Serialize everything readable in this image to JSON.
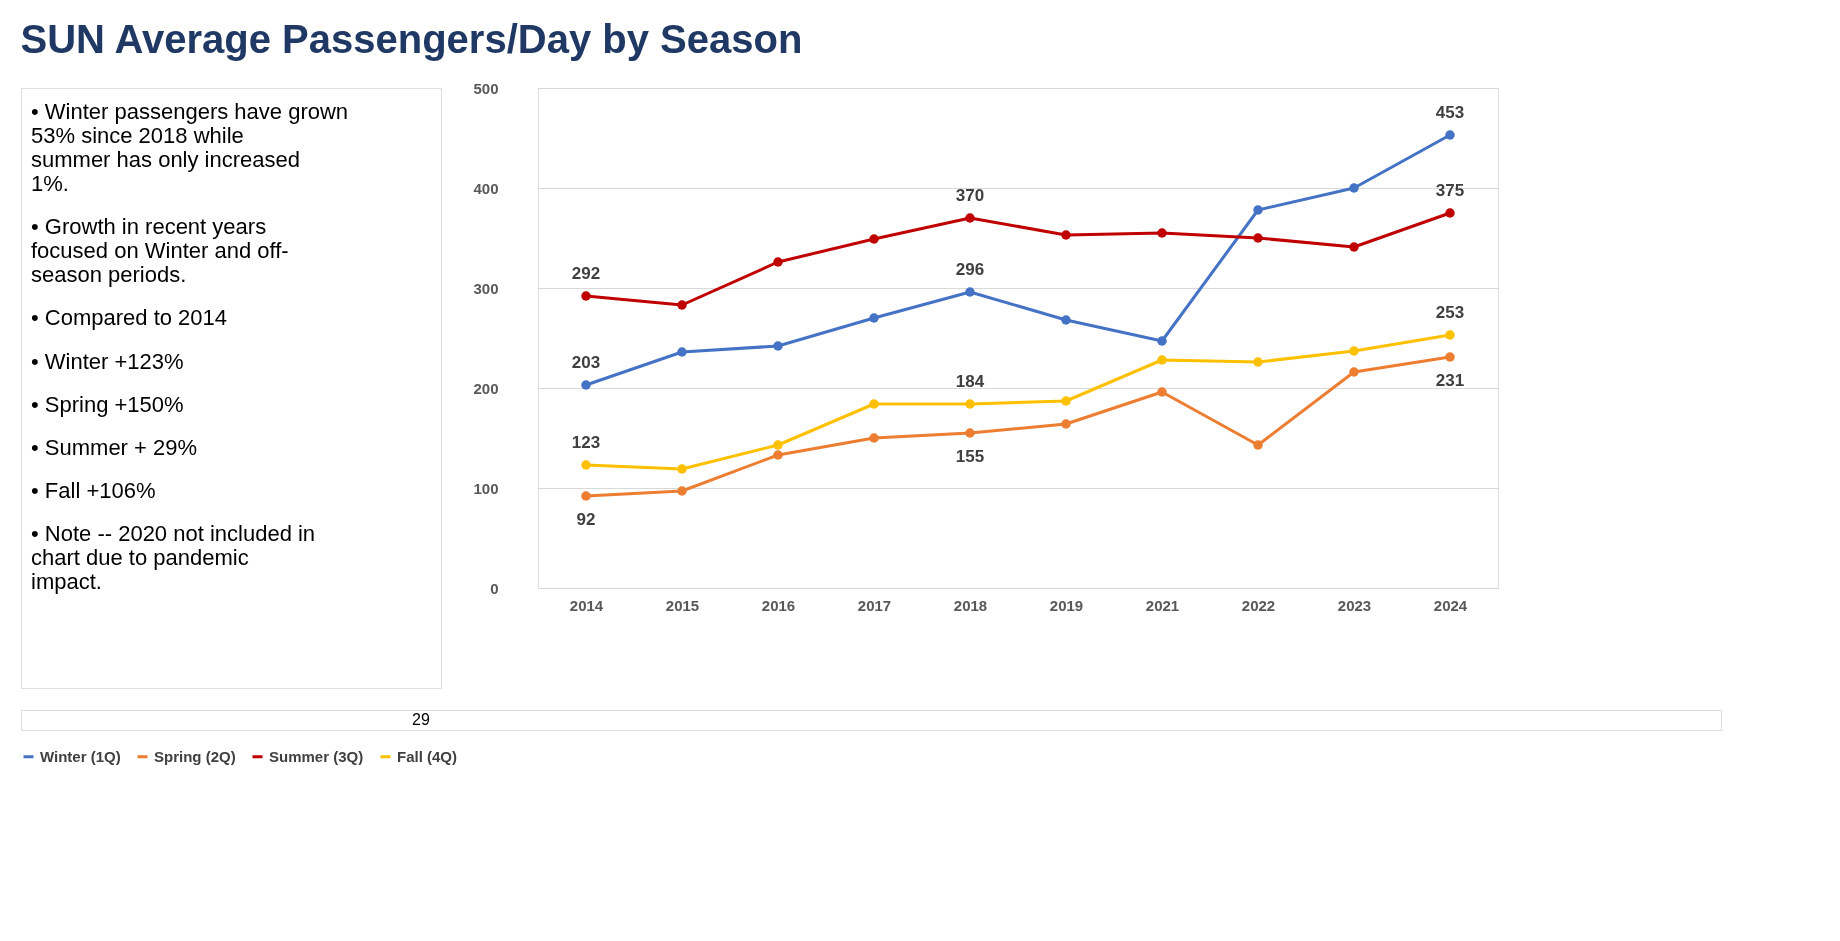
{
  "chart_data": {
    "type": "line",
    "title": "SUN Average Passengers/Day by Season",
    "categories": [
      "2014",
      "2015",
      "2016",
      "2017",
      "2018",
      "2019",
      "2021",
      "2022",
      "2023",
      "2024"
    ],
    "series": [
      {
        "name": "Winter (1Q)",
        "color": "#4472c4",
        "values": [
          203,
          236,
          242,
          270,
          296,
          268,
          247,
          378,
          400,
          453
        ],
        "value_labels": [
          "203",
          null,
          null,
          null,
          "296",
          null,
          null,
          null,
          null,
          "453"
        ]
      },
      {
        "name": "Spring (2Q)",
        "color": "#ed7d31",
        "values": [
          92,
          97,
          133,
          150,
          155,
          164,
          196,
          143,
          216,
          231
        ],
        "value_labels": [
          "92",
          null,
          null,
          null,
          "155",
          null,
          null,
          null,
          null,
          "231"
        ]
      },
      {
        "name": "Summer (3Q)",
        "color": "#c00000",
        "values": [
          292,
          283,
          326,
          349,
          370,
          353,
          355,
          350,
          341,
          375
        ],
        "value_labels": [
          "292",
          null,
          null,
          null,
          "370",
          null,
          null,
          null,
          null,
          "375"
        ]
      },
      {
        "name": "Fall (4Q)",
        "color": "#ffc000",
        "values": [
          123,
          119,
          143,
          184,
          184,
          187,
          228,
          226,
          237,
          253
        ],
        "value_labels": [
          "123",
          null,
          null,
          null,
          "184",
          null,
          null,
          null,
          null,
          "253"
        ]
      }
    ],
    "ylim": [
      0,
      500
    ],
    "yticks": [
      0,
      100,
      200,
      300,
      400,
      500
    ],
    "grid": "y",
    "legend": "bottom",
    "marker": "circle",
    "annotations": [
      "• Winter passengers have grown 53% since 2018 while summer has only increased 1%.",
      "• Growth in recent years focused on Winter and off-season periods.",
      "• Compared to 2014",
      "• Winter +123%",
      "• Spring +150%",
      "• Summer + 29%",
      "• Fall +106%",
      "• Note -- 2020 not included in chart due to pandemic impact.",
      "29"
    ]
  }
}
